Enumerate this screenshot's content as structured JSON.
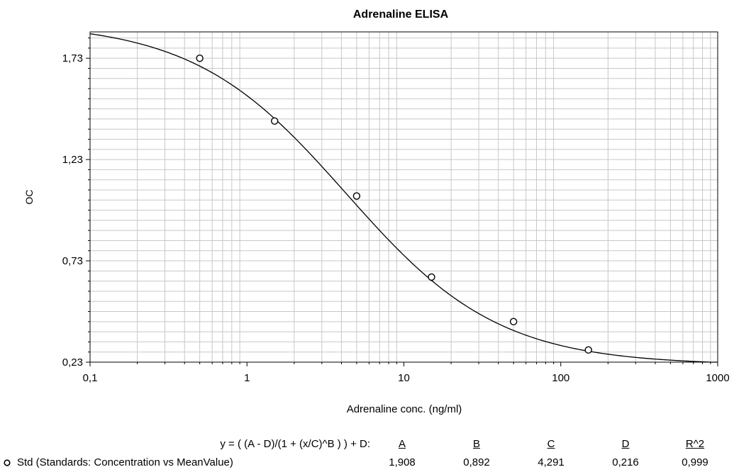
{
  "chart_data": {
    "type": "scatter",
    "title": "Adrenaline ELISA",
    "xlabel": "Adrenaline conc. (ng/ml)",
    "ylabel": "OC",
    "x_scale": "log",
    "xlim": [
      0.1,
      1000
    ],
    "ylim": [
      0.23,
      1.86
    ],
    "grid": true,
    "x_ticks": [
      "0,1",
      "1",
      "10",
      "100",
      "1000"
    ],
    "y_ticks": [
      {
        "value": 0.23,
        "label": "0,23"
      },
      {
        "value": 0.73,
        "label": "0,73"
      },
      {
        "value": 1.23,
        "label": "1,23"
      },
      {
        "value": 1.73,
        "label": "1,73"
      }
    ],
    "series": [
      {
        "name": "Std (Standards: Concentration vs MeanValue)",
        "x": [
          0.5,
          1.5,
          5,
          15,
          50,
          150
        ],
        "y": [
          1.73,
          1.42,
          1.05,
          0.65,
          0.43,
          0.29
        ]
      }
    ],
    "fit": {
      "equation": "y = ( (A - D)/(1 + (x/C)^B ) ) + D:",
      "headers": [
        "A",
        "B",
        "C",
        "D",
        "R^2"
      ],
      "values": [
        "1,908",
        "0,892",
        "4,291",
        "0,216",
        "0,999"
      ],
      "A": 1.908,
      "B": 0.892,
      "C": 4.291,
      "D": 0.216,
      "R2": 0.999
    }
  }
}
